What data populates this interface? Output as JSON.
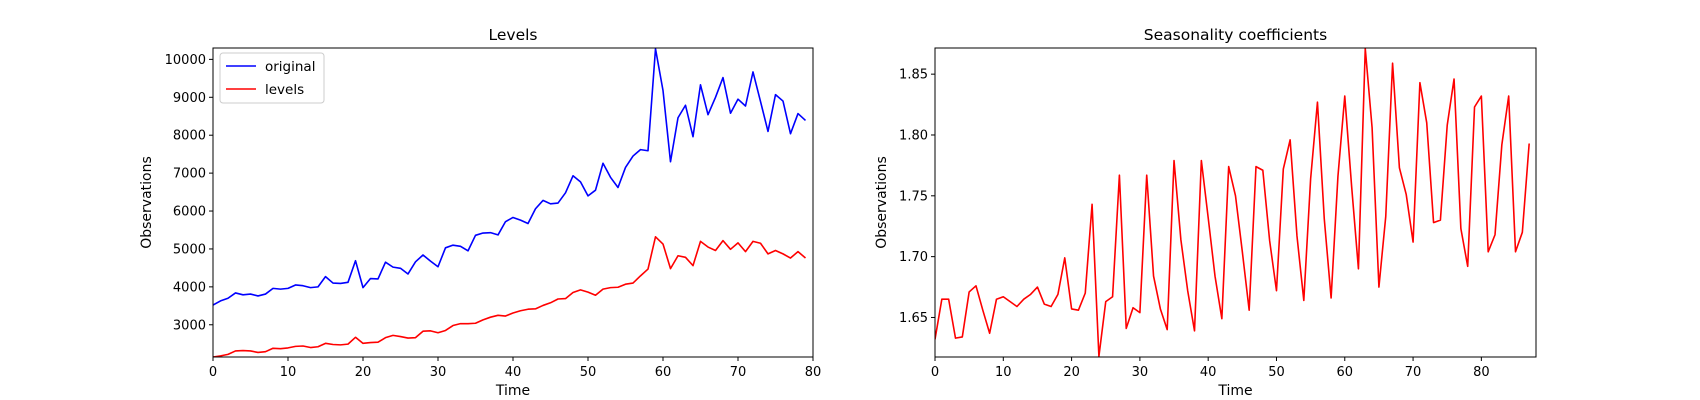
{
  "chart_data": [
    {
      "type": "line",
      "title": "Levels",
      "xlabel": "Time",
      "ylabel": "Observations",
      "xlim": [
        0,
        80
      ],
      "ylim": [
        2150,
        10300
      ],
      "xticks": [
        0,
        10,
        20,
        30,
        40,
        50,
        60,
        70,
        80
      ],
      "yticks": [
        3000,
        4000,
        5000,
        6000,
        7000,
        8000,
        9000,
        10000
      ],
      "grid": false,
      "legend": "top-left",
      "series": [
        {
          "name": "original",
          "color": "#0000ff",
          "x": [
            0,
            1,
            2,
            3,
            4,
            5,
            6,
            7,
            8,
            9,
            10,
            11,
            12,
            13,
            14,
            15,
            16,
            17,
            18,
            19,
            20,
            21,
            22,
            23,
            24,
            25,
            26,
            27,
            28,
            29,
            30,
            31,
            32,
            33,
            34,
            35,
            36,
            37,
            38,
            39,
            40,
            41,
            42,
            43,
            44,
            45,
            46,
            47,
            48,
            49,
            50,
            51,
            52,
            53,
            54,
            55,
            56,
            57,
            58,
            59,
            60,
            61,
            62,
            63,
            64,
            65,
            66,
            67,
            68,
            69,
            70,
            71,
            72,
            73,
            74,
            75,
            76,
            77,
            78,
            79
          ],
          "y": [
            3520,
            3630,
            3700,
            3840,
            3790,
            3810,
            3760,
            3810,
            3960,
            3940,
            3960,
            4050,
            4030,
            3980,
            4000,
            4270,
            4100,
            4090,
            4120,
            4690,
            3980,
            4220,
            4210,
            4650,
            4520,
            4490,
            4340,
            4660,
            4840,
            4680,
            4530,
            5030,
            5100,
            5070,
            4950,
            5360,
            5420,
            5430,
            5370,
            5720,
            5830,
            5760,
            5670,
            6060,
            6280,
            6190,
            6210,
            6480,
            6930,
            6770,
            6400,
            6550,
            7260,
            6890,
            6620,
            7150,
            7450,
            7620,
            7590,
            10280,
            9180,
            7300,
            8460,
            8790,
            7960,
            9330,
            8540,
            9000,
            9520,
            8580,
            8950,
            8770,
            9670,
            8890,
            8100,
            9070,
            8900,
            8040,
            8570,
            8390
          ]
        },
        {
          "name": "levels",
          "color": "#ff0000",
          "x": [
            0,
            1,
            2,
            3,
            4,
            5,
            6,
            7,
            8,
            9,
            10,
            11,
            12,
            13,
            14,
            15,
            16,
            17,
            18,
            19,
            20,
            21,
            22,
            23,
            24,
            25,
            26,
            27,
            28,
            29,
            30,
            31,
            32,
            33,
            34,
            35,
            36,
            37,
            38,
            39,
            40,
            41,
            42,
            43,
            44,
            45,
            46,
            47,
            48,
            49,
            50,
            51,
            52,
            53,
            54,
            55,
            56,
            57,
            58,
            59,
            60,
            61,
            62,
            63,
            64,
            65,
            66,
            67,
            68,
            69,
            70,
            71,
            72,
            73,
            74,
            75,
            76,
            77,
            78,
            79
          ],
          "y": [
            2150,
            2180,
            2220,
            2310,
            2320,
            2310,
            2270,
            2290,
            2380,
            2370,
            2390,
            2430,
            2440,
            2400,
            2420,
            2510,
            2480,
            2470,
            2490,
            2670,
            2510,
            2530,
            2540,
            2660,
            2720,
            2690,
            2650,
            2660,
            2830,
            2840,
            2790,
            2850,
            2980,
            3030,
            3030,
            3040,
            3130,
            3200,
            3250,
            3230,
            3310,
            3370,
            3410,
            3420,
            3510,
            3580,
            3680,
            3690,
            3850,
            3920,
            3860,
            3780,
            3940,
            3980,
            3990,
            4070,
            4100,
            4290,
            4470,
            5320,
            5130,
            4480,
            4820,
            4780,
            4560,
            5200,
            5050,
            4960,
            5220,
            4990,
            5160,
            4930,
            5200,
            5150,
            4870,
            4960,
            4870,
            4760,
            4930,
            4760
          ]
        }
      ]
    },
    {
      "type": "line",
      "title": "Seasonality coefficients",
      "xlabel": "Time",
      "ylabel": "Observations",
      "xlim": [
        0,
        88
      ],
      "ylim": [
        1.6175,
        1.8715
      ],
      "xticks": [
        0,
        10,
        20,
        30,
        40,
        50,
        60,
        70,
        80
      ],
      "yticks": [
        1.65,
        1.7,
        1.75,
        1.8,
        1.85
      ],
      "grid": false,
      "series": [
        {
          "color": "#ff0000",
          "x": [
            0,
            1,
            2,
            3,
            4,
            5,
            6,
            7,
            8,
            9,
            10,
            11,
            12,
            13,
            14,
            15,
            16,
            17,
            18,
            19,
            20,
            21,
            22,
            23,
            24,
            25,
            26,
            27,
            28,
            29,
            30,
            31,
            32,
            33,
            34,
            35,
            36,
            37,
            38,
            39,
            40,
            41,
            42,
            43,
            44,
            45,
            46,
            47,
            48,
            49,
            50,
            51,
            52,
            53,
            54,
            55,
            56,
            57,
            58,
            59,
            60,
            61,
            62,
            63,
            64,
            65,
            66,
            67,
            68,
            69,
            70,
            71,
            72,
            73,
            74,
            75,
            76,
            77,
            78,
            79,
            80,
            81,
            82,
            83,
            84,
            85,
            86,
            87
          ],
          "y": [
            1.632,
            1.665,
            1.665,
            1.633,
            1.634,
            1.671,
            1.676,
            1.656,
            1.637,
            1.665,
            1.667,
            1.663,
            1.659,
            1.665,
            1.669,
            1.675,
            1.661,
            1.659,
            1.669,
            1.699,
            1.657,
            1.656,
            1.67,
            1.743,
            1.618,
            1.663,
            1.667,
            1.767,
            1.641,
            1.658,
            1.654,
            1.767,
            1.684,
            1.657,
            1.64,
            1.779,
            1.714,
            1.672,
            1.639,
            1.779,
            1.732,
            1.684,
            1.649,
            1.774,
            1.75,
            1.704,
            1.656,
            1.774,
            1.771,
            1.713,
            1.672,
            1.772,
            1.796,
            1.717,
            1.664,
            1.764,
            1.827,
            1.731,
            1.666,
            1.766,
            1.832,
            1.758,
            1.69,
            1.871,
            1.806,
            1.675,
            1.733,
            1.859,
            1.773,
            1.751,
            1.712,
            1.843,
            1.81,
            1.728,
            1.73,
            1.808,
            1.846,
            1.723,
            1.692,
            1.823,
            1.832,
            1.704,
            1.718,
            1.792,
            1.832,
            1.704,
            1.72,
            1.793
          ]
        }
      ]
    }
  ]
}
